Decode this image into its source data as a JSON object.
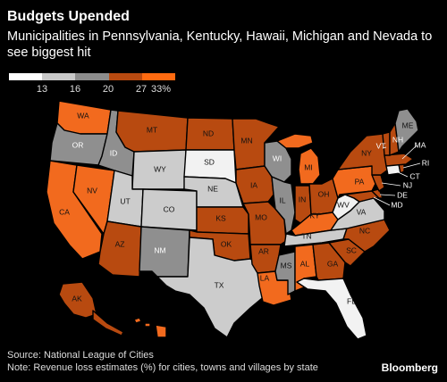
{
  "title": "Budgets Upended",
  "subtitle": "Municipalities in Pennsylvania, Kentucky, Hawaii, Michigan and Nevada to see biggest hit",
  "legend": {
    "ticks": [
      "13",
      "16",
      "20",
      "27",
      "33%"
    ],
    "colors": [
      "#ffffff",
      "#c8c8c8",
      "#8c8c8c",
      "#b84a10",
      "#ff6a10"
    ]
  },
  "source": "Source: National League of Cities",
  "note": "Note: Revenue loss estimates (%) for cities, towns and villages by state",
  "brand": "Bloomberg",
  "colors": {
    "white": "#f2f2f2",
    "lightgray": "#cccccc",
    "gray": "#8f8f8f",
    "dark_orange": "#b84a10",
    "bright_orange": "#f26a1e"
  },
  "states": [
    {
      "abbr": "WA",
      "bin": "bright_orange"
    },
    {
      "abbr": "OR",
      "bin": "gray"
    },
    {
      "abbr": "CA",
      "bin": "bright_orange"
    },
    {
      "abbr": "NV",
      "bin": "bright_orange"
    },
    {
      "abbr": "ID",
      "bin": "gray"
    },
    {
      "abbr": "MT",
      "bin": "dark_orange"
    },
    {
      "abbr": "WY",
      "bin": "lightgray"
    },
    {
      "abbr": "UT",
      "bin": "lightgray"
    },
    {
      "abbr": "AZ",
      "bin": "dark_orange"
    },
    {
      "abbr": "CO",
      "bin": "lightgray"
    },
    {
      "abbr": "NM",
      "bin": "gray"
    },
    {
      "abbr": "ND",
      "bin": "dark_orange"
    },
    {
      "abbr": "SD",
      "bin": "white"
    },
    {
      "abbr": "NE",
      "bin": "lightgray"
    },
    {
      "abbr": "KS",
      "bin": "dark_orange"
    },
    {
      "abbr": "OK",
      "bin": "dark_orange"
    },
    {
      "abbr": "TX",
      "bin": "lightgray"
    },
    {
      "abbr": "MN",
      "bin": "dark_orange"
    },
    {
      "abbr": "IA",
      "bin": "dark_orange"
    },
    {
      "abbr": "MO",
      "bin": "dark_orange"
    },
    {
      "abbr": "AR",
      "bin": "dark_orange"
    },
    {
      "abbr": "LA",
      "bin": "bright_orange"
    },
    {
      "abbr": "WI",
      "bin": "gray"
    },
    {
      "abbr": "IL",
      "bin": "gray"
    },
    {
      "abbr": "MS",
      "bin": "gray"
    },
    {
      "abbr": "MI",
      "bin": "bright_orange"
    },
    {
      "abbr": "IN",
      "bin": "dark_orange"
    },
    {
      "abbr": "OH",
      "bin": "dark_orange"
    },
    {
      "abbr": "KY",
      "bin": "bright_orange"
    },
    {
      "abbr": "TN",
      "bin": "lightgray"
    },
    {
      "abbr": "AL",
      "bin": "bright_orange"
    },
    {
      "abbr": "GA",
      "bin": "dark_orange"
    },
    {
      "abbr": "FL",
      "bin": "white"
    },
    {
      "abbr": "SC",
      "bin": "dark_orange"
    },
    {
      "abbr": "NC",
      "bin": "dark_orange"
    },
    {
      "abbr": "VA",
      "bin": "lightgray"
    },
    {
      "abbr": "WV",
      "bin": "white"
    },
    {
      "abbr": "PA",
      "bin": "bright_orange"
    },
    {
      "abbr": "NY",
      "bin": "dark_orange"
    },
    {
      "abbr": "VT",
      "bin": "dark_orange"
    },
    {
      "abbr": "NH",
      "bin": "dark_orange"
    },
    {
      "abbr": "ME",
      "bin": "gray"
    },
    {
      "abbr": "MA",
      "bin": "dark_orange"
    },
    {
      "abbr": "RI",
      "bin": "dark_orange"
    },
    {
      "abbr": "CT",
      "bin": "white"
    },
    {
      "abbr": "NJ",
      "bin": "dark_orange"
    },
    {
      "abbr": "DE",
      "bin": "dark_orange"
    },
    {
      "abbr": "MD",
      "bin": "dark_orange"
    },
    {
      "abbr": "AK",
      "bin": "dark_orange"
    },
    {
      "abbr": "HI",
      "bin": "bright_orange"
    }
  ]
}
